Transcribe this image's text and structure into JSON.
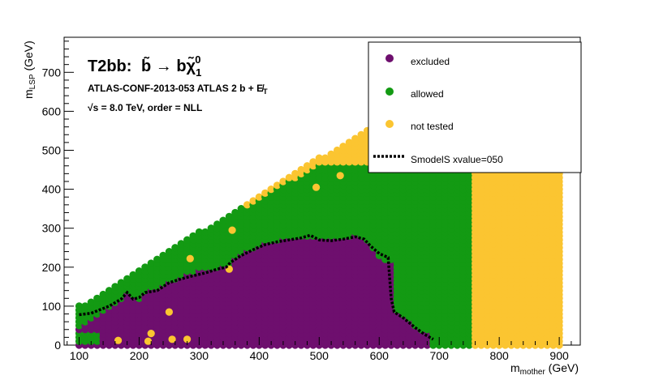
{
  "chart_data": {
    "type": "scatter",
    "title": "T2bb:",
    "title_model": "b̃ → bχ̃",
    "title_sub": "1",
    "title_sup": "0",
    "annotation_line1": "ATLAS-CONF-2013-053  ATLAS 2 b + E̸",
    "annotation_line1_sub": "T",
    "annotation_line2_prefix": "√s",
    "annotation_line2": " =  8.0 TeV, order =  NLL",
    "xlabel": "m",
    "xlabel_sub": "mother",
    "xlabel_unit": " (GeV)",
    "ylabel": "m",
    "ylabel_sub": "LSP",
    "ylabel_unit": " (GeV)",
    "xlim": [
      75,
      935
    ],
    "ylim": [
      0,
      790
    ],
    "x_ticks": [
      100,
      200,
      300,
      400,
      500,
      600,
      700,
      800,
      900
    ],
    "y_ticks": [
      0,
      100,
      200,
      300,
      400,
      500,
      600,
      700
    ],
    "x_tick_labels": [
      "100",
      "200",
      "300",
      "400",
      "500",
      "600",
      "700",
      "800",
      "900"
    ],
    "y_tick_labels": [
      "0",
      "100",
      "200",
      "300",
      "400",
      "500",
      "600",
      "700"
    ],
    "grid": false,
    "legend_position": "top-right",
    "series": [
      {
        "name": "excluded",
        "color": "#6e0f6e",
        "marker": "circle"
      },
      {
        "name": "allowed",
        "color": "#139a13",
        "marker": "circle"
      },
      {
        "name": "not tested",
        "color": "#fbc531",
        "marker": "circle"
      },
      {
        "name": "SmodelS xvalue=050",
        "color": "#000000",
        "marker": "dashed-line"
      }
    ],
    "grid_spacing": {
      "dx": 10,
      "dy": 10
    },
    "diagonal_edge": {
      "x_start": 100,
      "y_start": 100,
      "slope": 0.95,
      "y_cap": 640
    },
    "allowed_upper_cap": 465,
    "allowed_x_max": 750,
    "not_tested_x_min": 760,
    "not_tested_x_max": 900,
    "excluded_region_upper": [
      [
        100,
        40
      ],
      [
        110,
        50
      ],
      [
        130,
        70
      ],
      [
        160,
        100
      ],
      [
        180,
        130
      ],
      [
        190,
        120
      ],
      [
        200,
        115
      ],
      [
        210,
        130
      ],
      [
        220,
        140
      ],
      [
        230,
        140
      ],
      [
        240,
        155
      ],
      [
        250,
        165
      ],
      [
        260,
        165
      ],
      [
        270,
        175
      ],
      [
        280,
        180
      ],
      [
        290,
        185
      ],
      [
        300,
        190
      ],
      [
        320,
        195
      ],
      [
        340,
        200
      ],
      [
        350,
        205
      ],
      [
        360,
        225
      ],
      [
        380,
        240
      ],
      [
        400,
        255
      ],
      [
        420,
        265
      ],
      [
        440,
        270
      ],
      [
        460,
        275
      ],
      [
        480,
        278
      ],
      [
        500,
        270
      ],
      [
        520,
        270
      ],
      [
        540,
        275
      ],
      [
        560,
        280
      ],
      [
        570,
        275
      ],
      [
        580,
        260
      ],
      [
        600,
        220
      ],
      [
        610,
        215
      ],
      [
        620,
        215
      ],
      [
        620,
        100
      ],
      [
        630,
        80
      ],
      [
        650,
        60
      ],
      [
        670,
        35
      ],
      [
        680,
        30
      ]
    ],
    "excluded_left_low": [
      [
        100,
        40
      ],
      [
        110,
        40
      ],
      [
        130,
        60
      ]
    ],
    "contour_050": [
      [
        100,
        78
      ],
      [
        120,
        82
      ],
      [
        130,
        88
      ],
      [
        150,
        100
      ],
      [
        170,
        118
      ],
      [
        180,
        135
      ],
      [
        190,
        118
      ],
      [
        200,
        122
      ],
      [
        210,
        135
      ],
      [
        230,
        140
      ],
      [
        250,
        160
      ],
      [
        270,
        170
      ],
      [
        290,
        178
      ],
      [
        310,
        185
      ],
      [
        330,
        195
      ],
      [
        345,
        200
      ],
      [
        352,
        212
      ],
      [
        370,
        230
      ],
      [
        390,
        245
      ],
      [
        410,
        258
      ],
      [
        430,
        265
      ],
      [
        450,
        270
      ],
      [
        470,
        275
      ],
      [
        485,
        282
      ],
      [
        500,
        270
      ],
      [
        520,
        268
      ],
      [
        540,
        272
      ],
      [
        560,
        278
      ],
      [
        575,
        272
      ],
      [
        585,
        255
      ],
      [
        600,
        235
      ],
      [
        615,
        225
      ],
      [
        620,
        120
      ],
      [
        625,
        85
      ],
      [
        640,
        70
      ],
      [
        660,
        45
      ],
      [
        675,
        28
      ],
      [
        690,
        15
      ]
    ],
    "not_tested_points": [
      [
        165,
        12
      ],
      [
        215,
        10
      ],
      [
        220,
        30
      ],
      [
        250,
        85
      ],
      [
        255,
        15
      ],
      [
        280,
        15
      ],
      [
        285,
        222
      ],
      [
        350,
        195
      ],
      [
        355,
        295
      ],
      [
        495,
        405
      ],
      [
        535,
        435
      ]
    ]
  }
}
